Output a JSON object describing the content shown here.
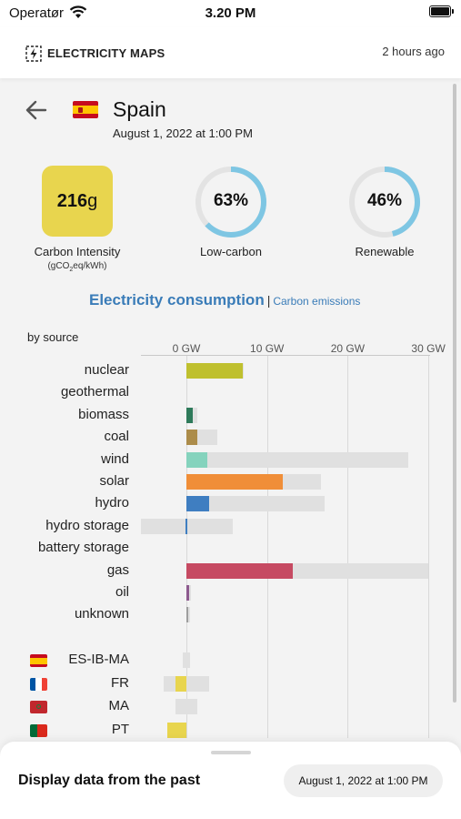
{
  "status_bar": {
    "carrier": "Operatør",
    "time": "3.20 PM"
  },
  "header": {
    "brand": "ELECTRICITY MAPS",
    "updated": "2 hours ago"
  },
  "zone": {
    "name": "Spain",
    "date": "August 1, 2022 at 1:00 PM"
  },
  "metrics": {
    "carbon_intensity": {
      "value": "216",
      "unit": "g",
      "label": "Carbon Intensity",
      "sub_prefix": "(gCO",
      "sub_subscript": "2",
      "sub_suffix": "eq/kWh)",
      "color": "#e8d54e"
    },
    "low_carbon": {
      "value": "63%",
      "fraction": 0.63,
      "label": "Low-carbon",
      "color": "#7ec6e3"
    },
    "renewable": {
      "value": "46%",
      "fraction": 0.46,
      "label": "Renewable",
      "color": "#7ec6e3"
    }
  },
  "tabs": {
    "active": "Electricity consumption",
    "separator": "|",
    "inactive": "Carbon emissions"
  },
  "chart_label": "by source",
  "chart_data": {
    "type": "bar",
    "x_ticks": [
      "0 GW",
      "10 GW",
      "20 GW",
      "30 GW"
    ],
    "xlim": [
      -5.6,
      30
    ],
    "sources": [
      {
        "name": "nuclear",
        "production": 7.0,
        "capacity": 7.1,
        "color": "#bfc02e"
      },
      {
        "name": "geothermal",
        "production": 0,
        "capacity": 0,
        "color": "#bfc02e"
      },
      {
        "name": "biomass",
        "production": 0.8,
        "capacity": 1.4,
        "color": "#2e7a5a"
      },
      {
        "name": "coal",
        "production": 1.3,
        "capacity": 3.8,
        "color": "#ac8c4a"
      },
      {
        "name": "wind",
        "production": 2.6,
        "capacity": 27.5,
        "color": "#85d3bd"
      },
      {
        "name": "solar",
        "production": 12.0,
        "capacity": 16.7,
        "color": "#f08e38"
      },
      {
        "name": "hydro",
        "production": 2.8,
        "capacity": 17.1,
        "color": "#3f7ec1"
      },
      {
        "name": "hydro storage",
        "production": -0.1,
        "capacity": 5.7,
        "capacity_min": -5.6,
        "color": "#3f7ec1"
      },
      {
        "name": "battery storage",
        "production": 0,
        "capacity": 0,
        "color": "#3f7ec1"
      },
      {
        "name": "gas",
        "production": 13.2,
        "capacity": 30.0,
        "color": "#c64a62"
      },
      {
        "name": "oil",
        "production": 0.3,
        "capacity": 0.6,
        "color": "#8d5a8e"
      },
      {
        "name": "unknown",
        "production": 0.1,
        "capacity": 0.4,
        "color": "#9e9e9e"
      }
    ],
    "exchanges": [
      {
        "name": "ES-IB-MA",
        "flag": "es",
        "value": 0,
        "capacity_min": -0.4,
        "capacity_max": 0.4,
        "color": "#e8d54e"
      },
      {
        "name": "FR",
        "flag": "fr",
        "value": -1.3,
        "capacity_min": -2.8,
        "capacity_max": 2.8,
        "color": "#e8d54e"
      },
      {
        "name": "MA",
        "flag": "ma",
        "value": 0,
        "capacity_min": -1.3,
        "capacity_max": 1.4,
        "color": "#e8d54e"
      },
      {
        "name": "PT",
        "flag": "pt",
        "value": -2.4,
        "capacity_min": -2.4,
        "capacity_max": 0,
        "color": "#e8d54e"
      }
    ]
  },
  "sheet": {
    "title": "Display data from the past",
    "date_button": "August 1, 2022 at 1:00 PM"
  }
}
